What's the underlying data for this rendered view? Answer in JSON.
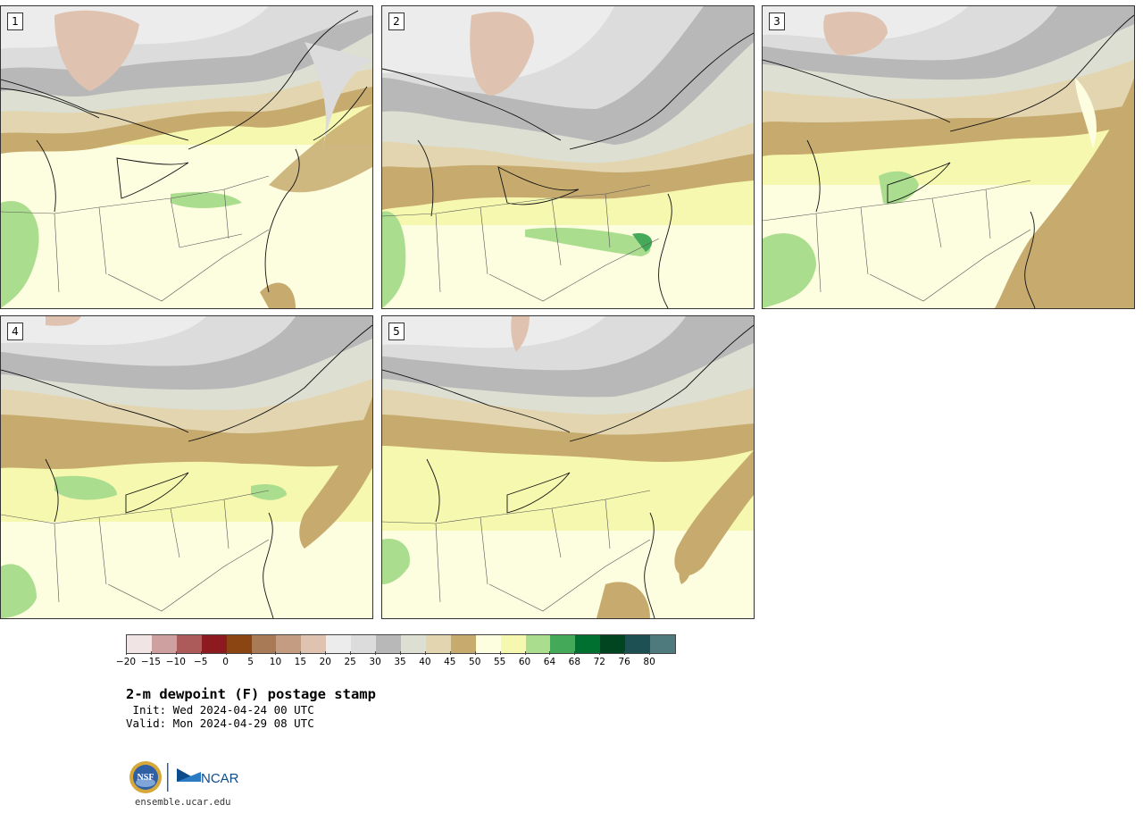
{
  "panels": [
    {
      "label": "1"
    },
    {
      "label": "2"
    },
    {
      "label": "3"
    },
    {
      "label": "4"
    },
    {
      "label": "5"
    }
  ],
  "colorbar": {
    "ticks": [
      "−20",
      "−15",
      "−10",
      "−5",
      "0",
      "5",
      "10",
      "15",
      "20",
      "25",
      "30",
      "35",
      "40",
      "45",
      "50",
      "55",
      "60",
      "64",
      "68",
      "72",
      "76",
      "80"
    ],
    "colors": [
      "#f0e4e4",
      "#cfa0a0",
      "#ad5a5a",
      "#8c1a1f",
      "#8b4513",
      "#a87a55",
      "#c49c82",
      "#dfc3b0",
      "#ececec",
      "#dcdcdc",
      "#b8b8b8",
      "#dddfd2",
      "#e2d5b0",
      "#c7ab6e",
      "#fdfde0",
      "#f5f8ae",
      "#abdd8f",
      "#44aa5a",
      "#007030",
      "#004420",
      "#1d5053",
      "#4e7a7e"
    ]
  },
  "title": "2-m dewpoint (F) postage stamp",
  "init": " Init: Wed 2024-04-24 00 UTC",
  "valid": "Valid: Mon 2024-04-29 08 UTC",
  "logo": {
    "nsf": "NSF",
    "ncar": "NCAR"
  },
  "url": "ensemble.ucar.edu"
}
